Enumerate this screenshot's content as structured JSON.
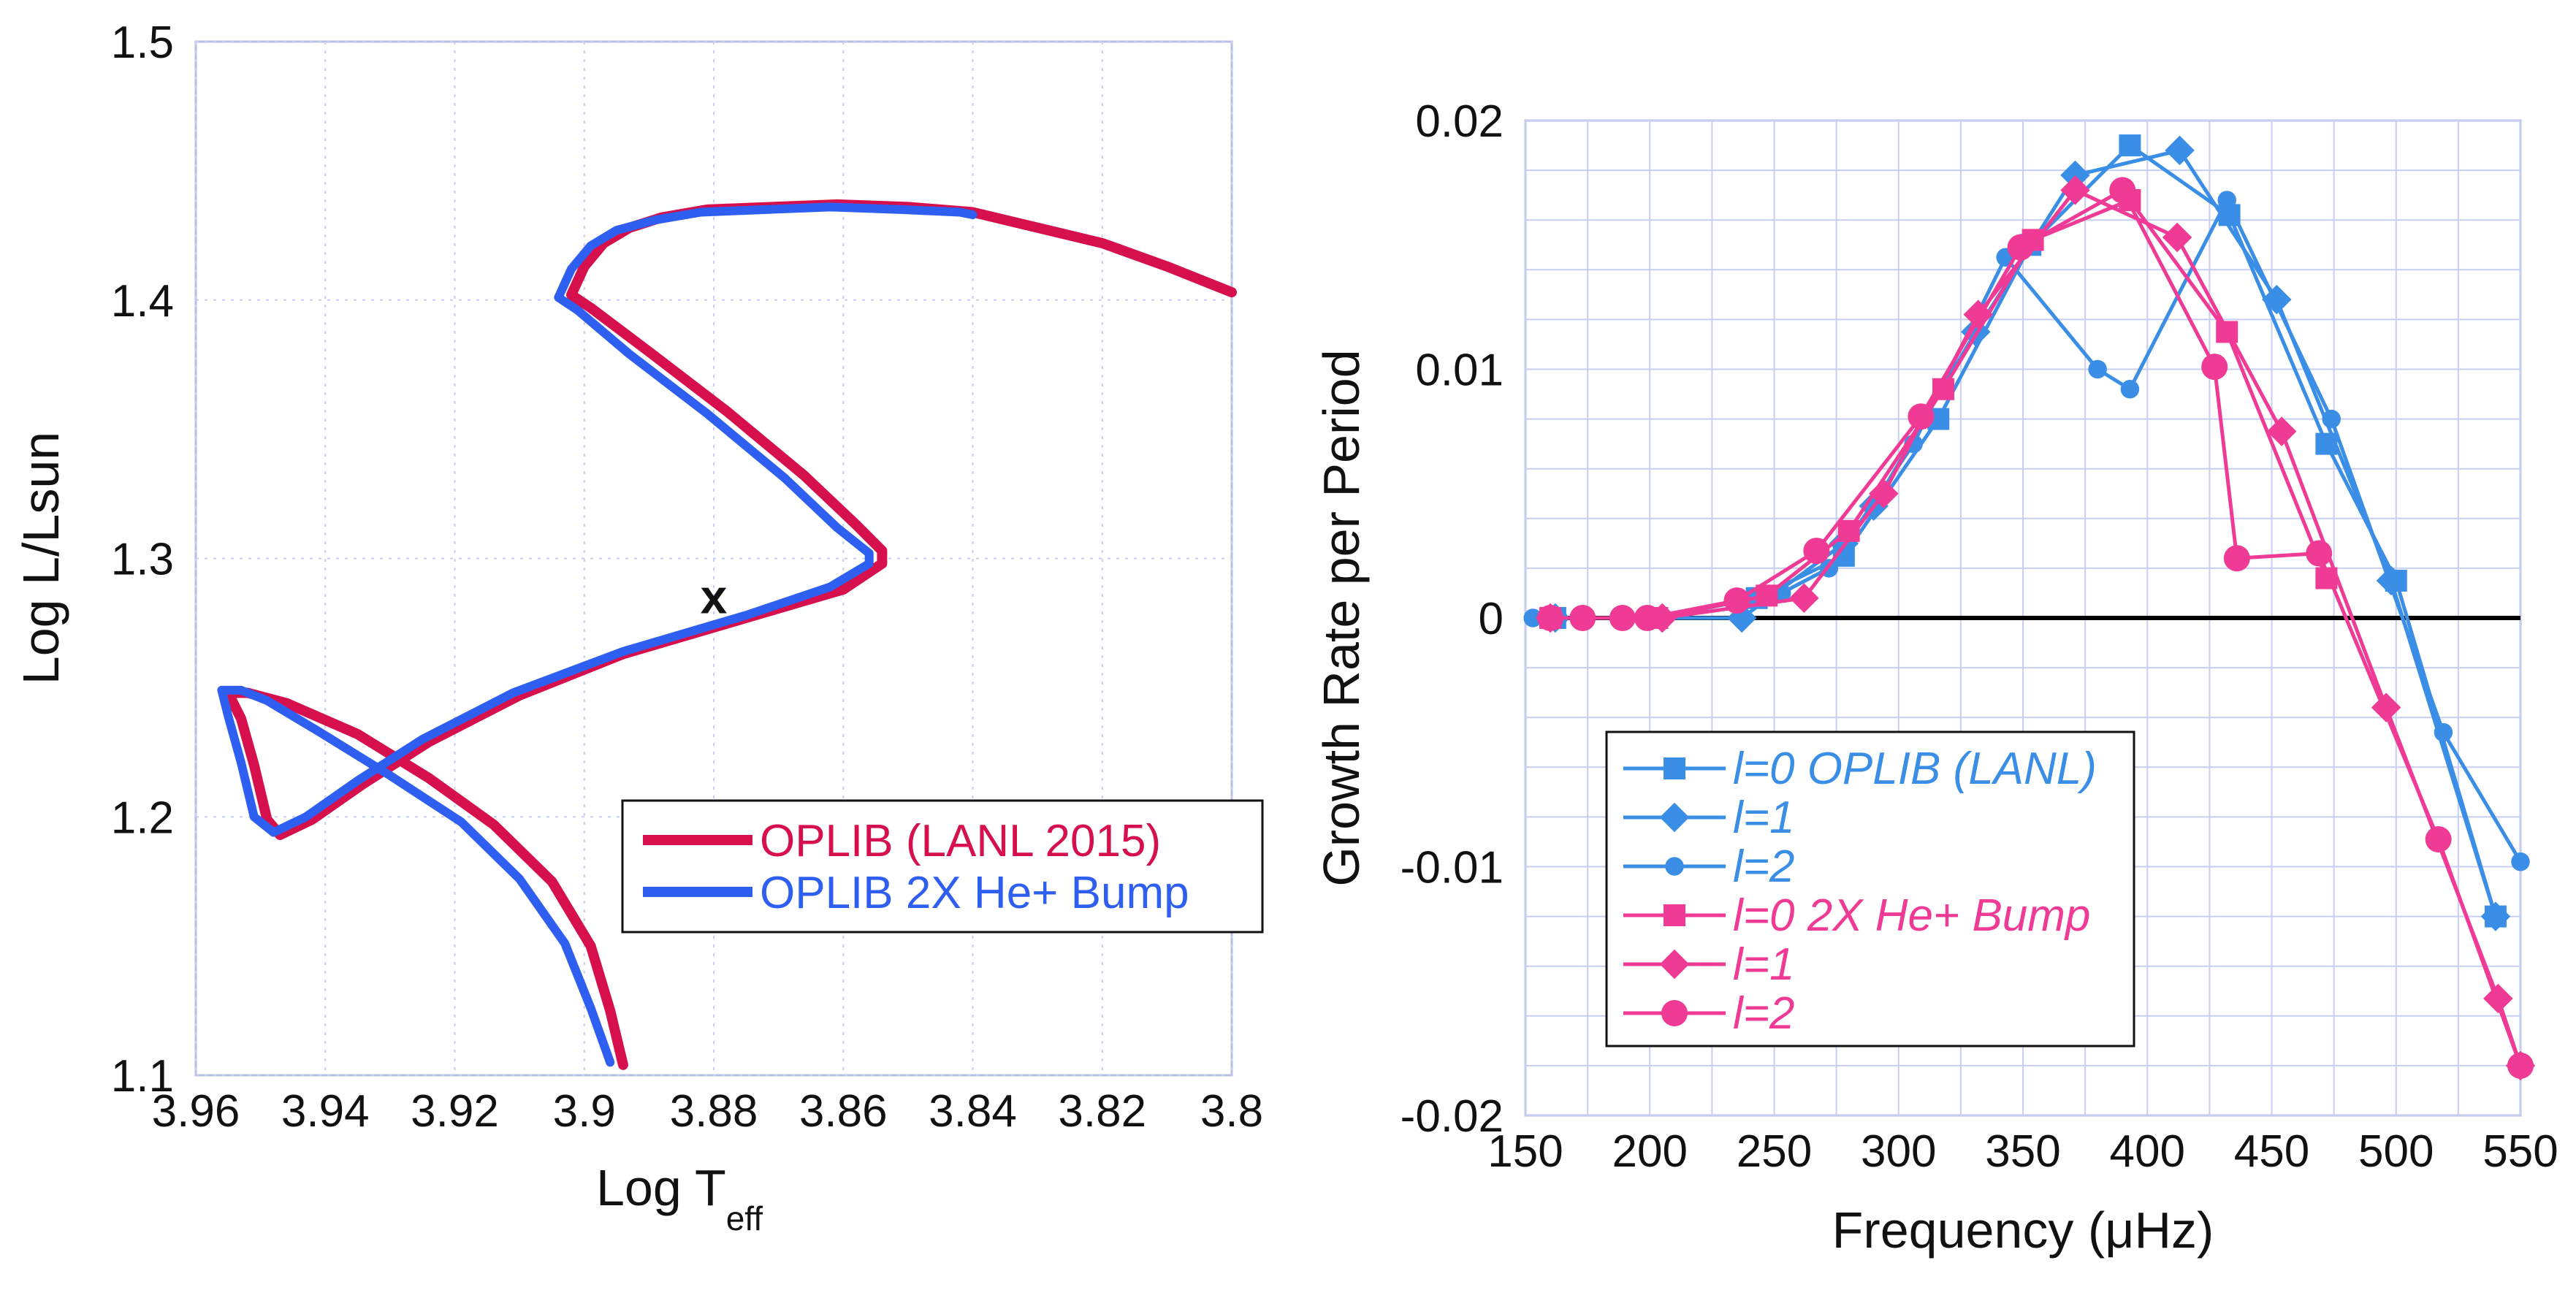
{
  "chart_data": [
    {
      "type": "line",
      "title": "",
      "xlabel": "Log T",
      "xlabel_sub": "eff",
      "ylabel": "Log L/Lsun",
      "xlim": [
        3.96,
        3.8
      ],
      "ylim": [
        1.1,
        1.5
      ],
      "x_ticks": [
        "3.96",
        "3.94",
        "3.92",
        "3.9",
        "3.88",
        "3.86",
        "3.84",
        "3.82",
        "3.8"
      ],
      "y_ticks": [
        "1.5",
        "1.4",
        "1.3",
        "1.2",
        "1.1"
      ],
      "marker_label": "x",
      "marker_point": [
        3.88,
        1.285
      ],
      "legend_position": "lower-right",
      "colors": {
        "red": "#d6104c",
        "blue": "#2f5ff0"
      },
      "series": [
        {
          "name": "OPLIB (LANL 2015)",
          "color": "#d6104c",
          "x": [
            3.894,
            3.896,
            3.899,
            3.905,
            3.914,
            3.924,
            3.935,
            3.946,
            3.952,
            3.955,
            3.953,
            3.951,
            3.949,
            3.947,
            3.942,
            3.934,
            3.924,
            3.91,
            3.894,
            3.875,
            3.86,
            3.854,
            3.854,
            3.858,
            3.866,
            3.878,
            3.89,
            3.899,
            3.902,
            3.9,
            3.897,
            3.893,
            3.888,
            3.881,
            3.871,
            3.861,
            3.85,
            3.84,
            3.83,
            3.82,
            3.81,
            3.8
          ],
          "y": [
            1.104,
            1.125,
            1.15,
            1.175,
            1.197,
            1.215,
            1.232,
            1.244,
            1.248,
            1.248,
            1.238,
            1.22,
            1.199,
            1.193,
            1.199,
            1.213,
            1.229,
            1.247,
            1.263,
            1.277,
            1.288,
            1.298,
            1.303,
            1.313,
            1.332,
            1.357,
            1.38,
            1.397,
            1.402,
            1.413,
            1.422,
            1.428,
            1.432,
            1.435,
            1.436,
            1.437,
            1.436,
            1.434,
            1.428,
            1.422,
            1.413,
            1.403
          ]
        },
        {
          "name": "OPLIB 2X He+ Bump",
          "color": "#2f5ff0",
          "x": [
            3.896,
            3.899,
            3.903,
            3.91,
            3.919,
            3.93,
            3.941,
            3.949,
            3.953,
            3.956,
            3.955,
            3.953,
            3.951,
            3.948,
            3.943,
            3.935,
            3.925,
            3.911,
            3.894,
            3.875,
            3.862,
            3.856,
            3.856,
            3.861,
            3.869,
            3.881,
            3.893,
            3.901,
            3.904,
            3.902,
            3.899,
            3.895,
            3.889,
            3.882,
            3.872,
            3.862,
            3.851,
            3.842,
            3.84
          ],
          "y": [
            1.105,
            1.126,
            1.151,
            1.176,
            1.198,
            1.216,
            1.233,
            1.245,
            1.249,
            1.249,
            1.239,
            1.221,
            1.2,
            1.194,
            1.2,
            1.214,
            1.23,
            1.248,
            1.264,
            1.278,
            1.289,
            1.298,
            1.302,
            1.312,
            1.331,
            1.356,
            1.379,
            1.396,
            1.401,
            1.412,
            1.421,
            1.427,
            1.431,
            1.434,
            1.435,
            1.436,
            1.435,
            1.434,
            1.433
          ]
        }
      ]
    },
    {
      "type": "line",
      "title": "",
      "xlabel": "Frequency (μHz)",
      "ylabel": "Growth Rate per Period",
      "xlim": [
        150,
        550
      ],
      "ylim": [
        -0.02,
        0.02
      ],
      "x_ticks": [
        "150",
        "200",
        "250",
        "300",
        "350",
        "400",
        "450",
        "500",
        "550"
      ],
      "y_ticks": [
        "0.02",
        "0.01",
        "0",
        "-0.01",
        "-0.02"
      ],
      "legend_position": "lower-left",
      "colors": {
        "blue": "#3a8ee6",
        "pink": "#ef3b95"
      },
      "series": [
        {
          "name": "l=0 OPLIB (LANL)",
          "marker": "square",
          "color": "#3a8ee6",
          "x": [
            162,
            203,
            243,
            278,
            316,
            353,
            393,
            433,
            472,
            500,
            540
          ],
          "y": [
            0.0,
            0.0,
            0.0008,
            0.0025,
            0.008,
            0.015,
            0.019,
            0.0162,
            0.007,
            0.0015,
            -0.012
          ]
        },
        {
          "name": "l=1",
          "marker": "diamond",
          "color": "#3a8ee6",
          "x": [
            162,
            205,
            237,
            278,
            290,
            331,
            371,
            413,
            452,
            498,
            540
          ],
          "y": [
            0.0,
            0.0,
            0.0,
            0.003,
            0.0045,
            0.0115,
            0.0178,
            0.0188,
            0.0128,
            0.0015,
            -0.012
          ]
        },
        {
          "name": "l=2",
          "marker": "circle",
          "color": "#3a8ee6",
          "x": [
            153,
            200,
            253,
            272,
            306,
            343,
            380,
            393,
            432,
            474,
            519,
            550
          ],
          "y": [
            0.0,
            0.0,
            0.001,
            0.002,
            0.007,
            0.0145,
            0.01,
            0.0092,
            0.0168,
            0.008,
            -0.0046,
            -0.0098
          ]
        },
        {
          "name": "l=0 2X He+ Bump",
          "marker": "square",
          "color": "#ef3b95",
          "x": [
            160,
            203,
            247,
            280,
            318,
            354,
            393,
            432,
            472
          ],
          "y": [
            0.0,
            0.0,
            0.0009,
            0.0035,
            0.0092,
            0.0152,
            0.0168,
            0.0115,
            0.0016
          ]
        },
        {
          "name": "l=1",
          "marker": "diamond",
          "color": "#ef3b95",
          "x": [
            160,
            205,
            262,
            294,
            332,
            371,
            412,
            454,
            496,
            541,
            550
          ],
          "y": [
            0.0,
            0.0,
            0.0008,
            0.005,
            0.0122,
            0.0172,
            0.0153,
            0.0075,
            -0.0036,
            -0.0153,
            -0.018
          ]
        },
        {
          "name": "l=2",
          "marker": "circle",
          "color": "#ef3b95",
          "x": [
            160,
            173,
            189,
            199,
            235,
            267,
            309,
            349,
            390,
            427,
            436,
            469,
            517,
            550
          ],
          "y": [
            0.0,
            0.0,
            0.0,
            0.0,
            0.0007,
            0.0027,
            0.0081,
            0.0149,
            0.0172,
            0.0101,
            0.0024,
            0.0026,
            -0.0089,
            -0.018
          ]
        }
      ]
    }
  ]
}
